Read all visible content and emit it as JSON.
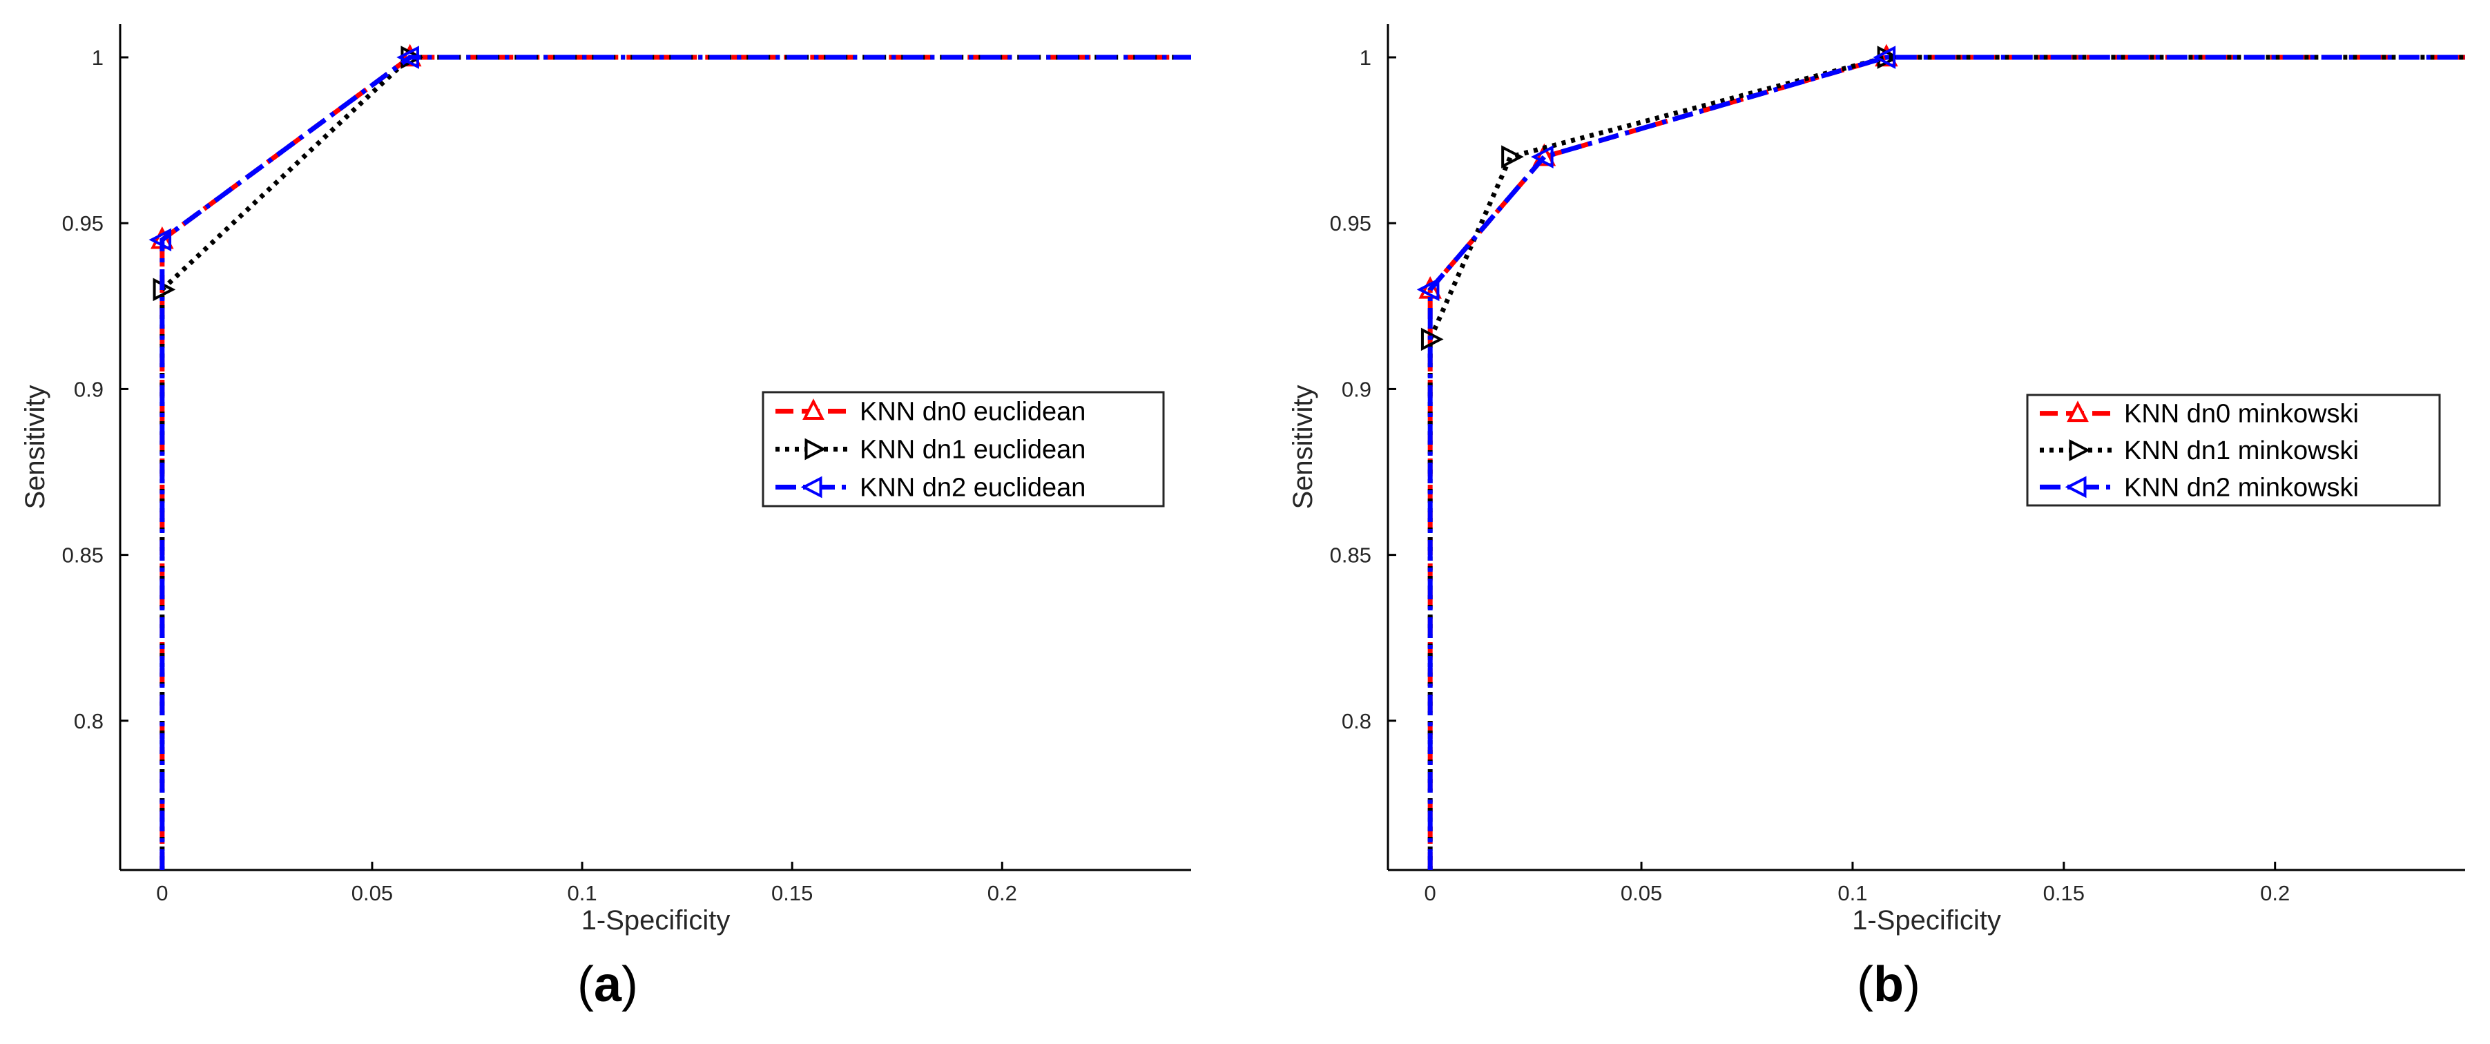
{
  "chart_data": [
    {
      "type": "line",
      "panel_label": "(a)",
      "xlabel": "1-Specificity",
      "ylabel": "Sensitivity",
      "xlim": [
        -0.01,
        0.245
      ],
      "ylim": [
        0.755,
        1.01
      ],
      "xticks": [
        0,
        0.05,
        0.1,
        0.15,
        0.2
      ],
      "xtick_labels": [
        "0",
        "0.05",
        "0.1",
        "0.15",
        "0.2"
      ],
      "yticks": [
        0.8,
        0.85,
        0.9,
        0.95,
        1
      ],
      "ytick_labels": [
        "0.8",
        "0.85",
        "0.9",
        "0.95",
        "1"
      ],
      "legend_position": "right",
      "series": [
        {
          "name": "KNN dn0 euclidean",
          "color": "#ff0000",
          "dash": "dash",
          "marker": "triangle-up",
          "x": [
            0,
            0,
            0.059,
            0.245
          ],
          "y": [
            0.755,
            0.945,
            1.0,
            1.0
          ]
        },
        {
          "name": "KNN dn1 euclidean",
          "color": "#000000",
          "dash": "dot",
          "marker": "triangle-right",
          "x": [
            0,
            0,
            0.059,
            0.245
          ],
          "y": [
            0.755,
            0.93,
            1.0,
            1.0
          ]
        },
        {
          "name": "KNN dn2 euclidean",
          "color": "#0000ff",
          "dash": "dashdot",
          "marker": "triangle-left",
          "x": [
            0,
            0,
            0.059,
            0.245
          ],
          "y": [
            0.755,
            0.945,
            1.0,
            1.0
          ]
        }
      ]
    },
    {
      "type": "line",
      "panel_label": "(b)",
      "xlabel": "1-Specificity",
      "ylabel": "Sensitivity",
      "xlim": [
        -0.01,
        0.245
      ],
      "ylim": [
        0.755,
        1.01
      ],
      "xticks": [
        0,
        0.05,
        0.1,
        0.15,
        0.2
      ],
      "xtick_labels": [
        "0",
        "0.05",
        "0.1",
        "0.15",
        "0.2"
      ],
      "yticks": [
        0.8,
        0.85,
        0.9,
        0.95,
        1
      ],
      "ytick_labels": [
        "0.8",
        "0.85",
        "0.9",
        "0.95",
        "1"
      ],
      "legend_position": "right",
      "series": [
        {
          "name": "KNN dn0 minkowski",
          "color": "#ff0000",
          "dash": "dash",
          "marker": "triangle-up",
          "x": [
            0,
            0,
            0.027,
            0.108,
            0.245
          ],
          "y": [
            0.755,
            0.93,
            0.97,
            1.0,
            1.0
          ]
        },
        {
          "name": "KNN dn1 minkowski",
          "color": "#000000",
          "dash": "dot",
          "marker": "triangle-right",
          "x": [
            0,
            0,
            0.019,
            0.108,
            0.245
          ],
          "y": [
            0.755,
            0.915,
            0.97,
            1.0,
            1.0
          ]
        },
        {
          "name": "KNN dn2 minkowski",
          "color": "#0000ff",
          "dash": "dashdot",
          "marker": "triangle-left",
          "x": [
            0,
            0,
            0.027,
            0.108,
            0.245
          ],
          "y": [
            0.755,
            0.93,
            0.97,
            1.0,
            1.0
          ]
        }
      ]
    }
  ]
}
